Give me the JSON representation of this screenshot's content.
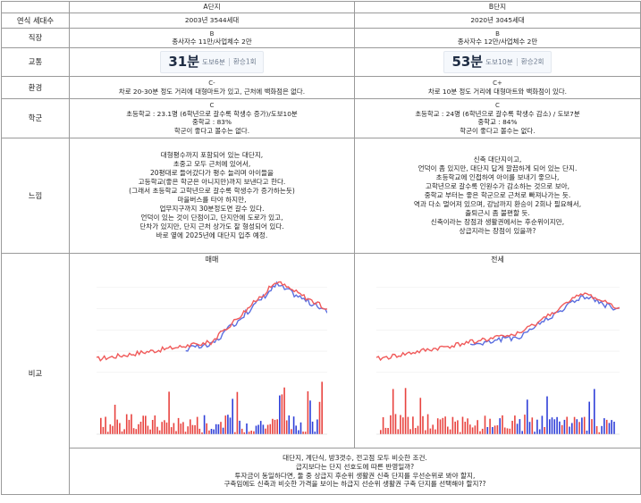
{
  "table": {
    "header": {
      "a": "A단지",
      "b": "B단지"
    },
    "rows": {
      "year": {
        "label": "연식 세대수",
        "a": "2003년 3544세대",
        "b": "2020년 3045세대"
      },
      "job": {
        "label": "직장",
        "a_grade": "B",
        "a": "종사자수 11만/사업체수 2만",
        "b_grade": "B",
        "b": "종사자수 12만/사업체수 2만"
      },
      "commute": {
        "label": "교통",
        "a": {
          "mins": "31분",
          "walk": "도보6분",
          "transfer": "환승1회"
        },
        "b": {
          "mins": "53분",
          "walk": "도보10분",
          "transfer": "환승2회"
        }
      },
      "env": {
        "label": "환경",
        "a_grade": "C-",
        "a": "차로 20-30분 정도 거리에 대형마트가 있고, 근처에 백화점은 없다.",
        "b_grade": "C+",
        "b": "차로 10분 정도 거리에 대형마트와 백화점이 있다."
      },
      "school": {
        "label": "학군",
        "a_grade": "C",
        "a_lines": [
          "초등학교 : 23.1명 (6학년으로 갈수록 학생수 증가)/도보10분",
          "중학교 : 83%",
          "학군이 좋다고 볼수는 없다."
        ],
        "b_grade": "C",
        "b_lines": [
          "초등학교 : 24명 (6학년으로 갈수록 학생수 감소) / 도보7분",
          "중학교 : 84%",
          "학군이 좋다고 볼수는 없다."
        ]
      },
      "feel": {
        "label": "느낌",
        "a_lines": [
          "대형평수까지 포함되어 있는 대단지,",
          "초중고 모두 근처에 있어서,",
          "20평대로 들어갔다가 평수 늘리며 아이들을",
          "고등학교(좋은 학군은 아니지만)까지 보낸다고 한다.",
          "(그래서 초등학교 고학년으로 갈수록 학생수가 증가하는듯)",
          "마을버스를 타야 하지만,",
          "업무지구까지 30분정도면 갈수 있다.",
          "언덕이 있는 것이 단점이고, 단지안에 도로가 있고,",
          "단차가 있지만, 단지 근처 상가도 잘 형성되어 있다.",
          "바로 옆에 2025년에 대단지 입주 예정."
        ],
        "b_lines": [
          "신축 대단지이고,",
          "언덕이 좀 있지만, 대단지 답게 깔끔하게 되어 있는 단지.",
          "초등학교에 인접하여 아이를 보내기 좋으나,",
          "고학년으로 갈수록 인원수가 감소하는 것으로 보아,",
          "중학교 부터는 좋은 학군으로 근처로 빠져나가는 듯.",
          "역과 다소 멀어져 있으며, 강남까지 환승이 2회나 필요해서,",
          "출퇴근시 좀 불편할 듯.",
          "신축이라는 장점과 생활권에서는 후순위이지만,",
          "상급지라는 장점이 있을까?"
        ]
      },
      "compare": {
        "label": "비교",
        "a_title": "매매",
        "b_title": "전세",
        "summary_lines": [
          "대단지, 계단식, 방3갯수, 전고점 모두 비슷한 조건.",
          "급지보다는 단지 선호도에 따른 반영일까?",
          "투자금이 동일하다면, 둘 중 상급지 후순위 생활권 신축 단지를 우선순위로 봐야 할지,",
          "구축임에도 신축과 비슷한 가격을 보이는 하급지 선순위 생활권 구축 단지를 선택해야 할지??"
        ]
      }
    }
  },
  "colors": {
    "red_series": "#f05a5a",
    "blue_series": "#5b6fe0",
    "red_bar": "#e8433f",
    "blue_bar": "#2f3fd8",
    "grid": "#eeeeee"
  }
}
